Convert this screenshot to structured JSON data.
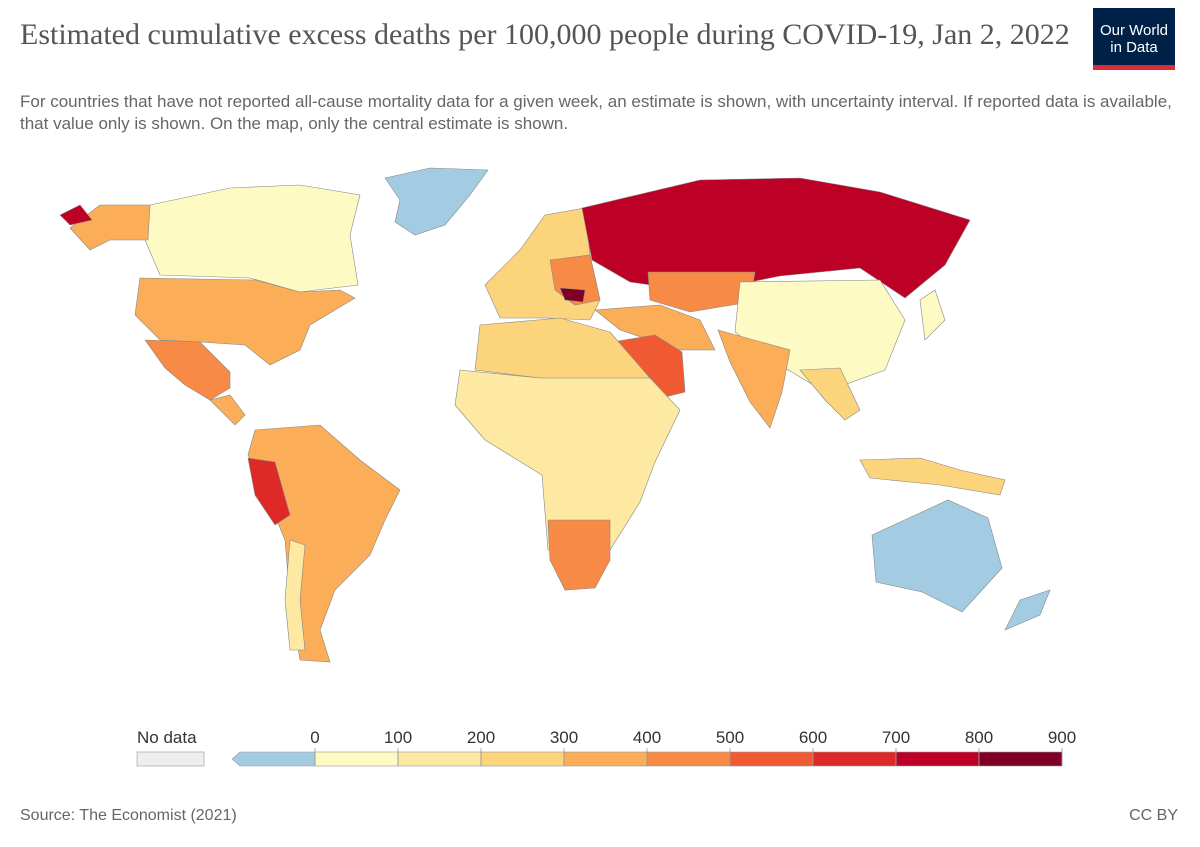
{
  "header": {
    "title": "Estimated cumulative excess deaths per 100,000 people during COVID-19, Jan 2, 2022",
    "subtitle": "For countries that have not reported all-cause mortality data for a given week, an estimate is shown, with uncertainty interval. If reported data is available, that value only is shown. On the map, only the central estimate is shown.",
    "logo": [
      "Our World",
      "in Data"
    ]
  },
  "legend": {
    "no_data": "No data",
    "ticks": [
      0,
      100,
      200,
      300,
      400,
      500,
      600,
      700,
      800,
      900
    ],
    "below_color": "#a3cce3",
    "colors": [
      "#fefac3",
      "#fde9a1",
      "#fcd47b",
      "#fbad57",
      "#f78b45",
      "#f05a33",
      "#de2a26",
      "#bd0026",
      "#7f0026"
    ]
  },
  "footer": {
    "source": "Source: The Economist (2021)",
    "license": "CC BY"
  }
}
